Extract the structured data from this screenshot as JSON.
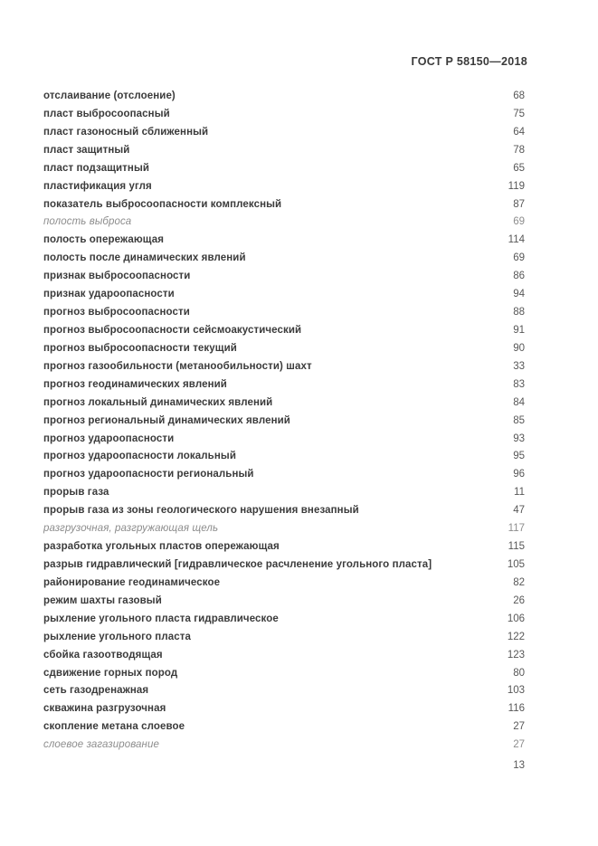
{
  "header": {
    "title": "ГОСТ Р 58150—2018"
  },
  "footer": {
    "page_number": "13"
  },
  "index": {
    "entries": [
      {
        "term": "отслаивание (отслоение)",
        "page": "68",
        "style": "bold"
      },
      {
        "term": "пласт выбросоопасный",
        "page": "75",
        "style": "bold"
      },
      {
        "term": "пласт газоносный сближенный",
        "page": "64",
        "style": "bold"
      },
      {
        "term": "пласт защитный",
        "page": "78",
        "style": "bold"
      },
      {
        "term": "пласт подзащитный",
        "page": "65",
        "style": "bold"
      },
      {
        "term": "пластификация угля",
        "page": "119",
        "style": "bold"
      },
      {
        "term": "показатель выбросоопасности комплексный",
        "page": "87",
        "style": "bold"
      },
      {
        "term": "полость выброса",
        "page": "69",
        "style": "italic"
      },
      {
        "term": "полость опережающая",
        "page": "114",
        "style": "bold"
      },
      {
        "term": "полость после динамических явлений",
        "page": "69",
        "style": "bold"
      },
      {
        "term": "признак выбросоопасности",
        "page": "86",
        "style": "bold"
      },
      {
        "term": "признак удароопасности",
        "page": "94",
        "style": "bold"
      },
      {
        "term": "прогноз выбросоопасности",
        "page": "88",
        "style": "bold"
      },
      {
        "term": "прогноз выбросоопасности сейсмоакустический",
        "page": "91",
        "style": "bold"
      },
      {
        "term": "прогноз выбросоопасности текущий",
        "page": "90",
        "style": "bold"
      },
      {
        "term": "прогноз газообильности (метанообильности) шахт",
        "page": "33",
        "style": "bold"
      },
      {
        "term": "прогноз геодинамических явлений",
        "page": "83",
        "style": "bold"
      },
      {
        "term": "прогноз локальный динамических явлений",
        "page": "84",
        "style": "bold"
      },
      {
        "term": "прогноз региональный динамических явлений",
        "page": "85",
        "style": "bold"
      },
      {
        "term": "прогноз удароопасности",
        "page": "93",
        "style": "bold"
      },
      {
        "term": "прогноз удароопасности локальный",
        "page": "95",
        "style": "bold"
      },
      {
        "term": "прогноз удароопасности региональный",
        "page": "96",
        "style": "bold"
      },
      {
        "term": "прорыв газа",
        "page": "11",
        "style": "bold"
      },
      {
        "term": "прорыв газа из зоны геологического нарушения внезапный",
        "page": "47",
        "style": "bold"
      },
      {
        "term": "разгрузочная, разгружающая щель",
        "page": "117",
        "style": "italic"
      },
      {
        "term": "разработка угольных пластов опережающая",
        "page": "115",
        "style": "bold"
      },
      {
        "term": "разрыв гидравлический [гидравлическое расчленение угольного пласта]",
        "page": "105",
        "style": "bold"
      },
      {
        "term": "районирование геодинамическое",
        "page": "82",
        "style": "bold"
      },
      {
        "term": "режим шахты газовый",
        "page": "26",
        "style": "bold"
      },
      {
        "term": "рыхление угольного пласта гидравлическое",
        "page": "106",
        "style": "bold"
      },
      {
        "term": "рыхление угольного пласта",
        "page": "122",
        "style": "bold"
      },
      {
        "term": "сбойка газоотводящая",
        "page": "123",
        "style": "bold"
      },
      {
        "term": "сдвижение горных пород",
        "page": "80",
        "style": "bold"
      },
      {
        "term": "сеть газодренажная",
        "page": "103",
        "style": "bold"
      },
      {
        "term": "скважина разгрузочная",
        "page": "116",
        "style": "bold"
      },
      {
        "term": "скопление метана слоевое",
        "page": "27",
        "style": "bold"
      },
      {
        "term": "слоевое загазирование",
        "page": "27",
        "style": "italic"
      }
    ]
  }
}
